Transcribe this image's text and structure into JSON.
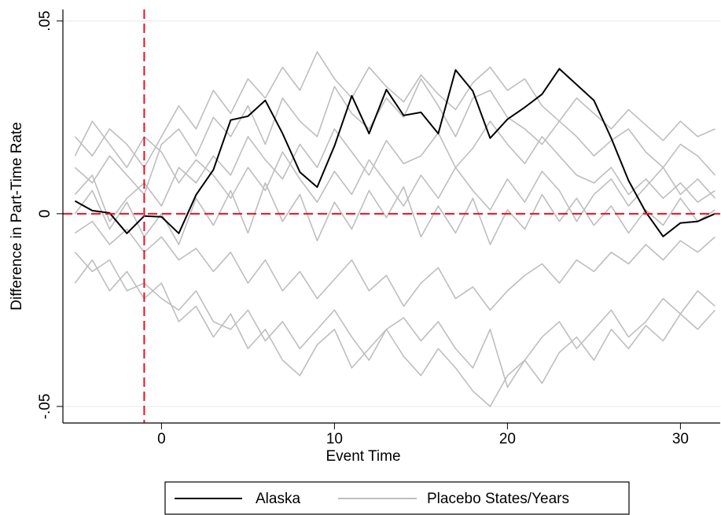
{
  "chart_data": {
    "type": "line",
    "xlabel": "Event Time",
    "ylabel": "Difference in Part-Time Rate",
    "x": [
      -5,
      -4,
      -3,
      -2,
      -1,
      0,
      1,
      2,
      3,
      4,
      5,
      6,
      7,
      8,
      9,
      10,
      11,
      12,
      13,
      14,
      15,
      16,
      17,
      18,
      19,
      20,
      21,
      22,
      23,
      24,
      25,
      26,
      27,
      28,
      29,
      30,
      31,
      32
    ],
    "series": [
      {
        "name": "Alaska",
        "color": "#000000",
        "values": [
          0.0033,
          0.0008,
          0.0002,
          -0.0051,
          -0.0006,
          -0.0008,
          -0.0051,
          0.0049,
          0.0114,
          0.0243,
          0.0253,
          0.0294,
          0.0208,
          0.0108,
          0.0069,
          0.0176,
          0.0306,
          0.0208,
          0.0322,
          0.0255,
          0.0263,
          0.0208,
          0.0373,
          0.0318,
          0.0196,
          0.0245,
          0.0276,
          0.031,
          0.0376,
          0.0335,
          0.0294,
          0.0196,
          0.0086,
          0.0004,
          -0.0059,
          -0.0024,
          -0.002,
          0
        ]
      },
      {
        "name": "Placebo States/Years",
        "color": "#bebebe",
        "values": [
          [
            0.012,
            0.008,
            0.015,
            0.01,
            0.005,
            0.018,
            0.022,
            0.015,
            0.025,
            0.02,
            0.028,
            0.018,
            0.03,
            0.024,
            0.02,
            0.033,
            0.026,
            0.022,
            0.03,
            0.025,
            0.035,
            0.028,
            0.02,
            0.03,
            0.032,
            0.025,
            0.022,
            0.018,
            0.024,
            0.02,
            0.015,
            0.019,
            0.022,
            0.016,
            0.012,
            0.018,
            0.015,
            0.01
          ],
          [
            -0.01,
            -0.015,
            -0.012,
            -0.02,
            -0.018,
            -0.022,
            -0.025,
            -0.02,
            -0.028,
            -0.03,
            -0.025,
            -0.033,
            -0.028,
            -0.035,
            -0.03,
            -0.025,
            -0.032,
            -0.038,
            -0.03,
            -0.027,
            -0.033,
            -0.028,
            -0.035,
            -0.04,
            -0.03,
            -0.045,
            -0.038,
            -0.032,
            -0.028,
            -0.035,
            -0.03,
            -0.025,
            -0.032,
            -0.028,
            -0.022,
            -0.026,
            -0.02,
            -0.024
          ],
          [
            0.005,
            0.01,
            -0.002,
            0.004,
            0.008,
            0.002,
            0.012,
            0.008,
            0.015,
            0.01,
            0.02,
            0.014,
            0.009,
            0.018,
            0.012,
            0.022,
            0.016,
            0.01,
            0.019,
            0.013,
            0.015,
            0.021,
            0.012,
            0.017,
            0.024,
            0.018,
            0.013,
            0.02,
            0.015,
            0.01,
            0.008,
            0.012,
            0.005,
            0.009,
            0.004,
            0.008,
            0.003,
            0.006
          ],
          [
            -0.005,
            -0.002,
            -0.008,
            -0.004,
            -0.01,
            -0.006,
            -0.012,
            -0.009,
            -0.015,
            -0.01,
            -0.018,
            -0.012,
            -0.02,
            -0.015,
            -0.022,
            -0.017,
            -0.012,
            -0.02,
            -0.016,
            -0.024,
            -0.018,
            -0.014,
            -0.022,
            -0.019,
            -0.025,
            -0.02,
            -0.016,
            -0.013,
            -0.018,
            -0.012,
            -0.015,
            -0.01,
            -0.013,
            -0.008,
            -0.012,
            -0.007,
            -0.01,
            -0.006
          ],
          [
            0.02,
            0.015,
            0.022,
            0.018,
            0.012,
            0.02,
            0.028,
            0.022,
            0.032,
            0.026,
            0.035,
            0.03,
            0.038,
            0.032,
            0.042,
            0.035,
            0.03,
            0.038,
            0.033,
            0.029,
            0.036,
            0.031,
            0.027,
            0.034,
            0.038,
            0.032,
            0.035,
            0.028,
            0.024,
            0.03,
            0.026,
            0.022,
            0.027,
            0.023,
            0.019,
            0.024,
            0.02,
            0.022
          ],
          [
            -0.018,
            -0.012,
            -0.02,
            -0.015,
            -0.022,
            -0.018,
            -0.028,
            -0.024,
            -0.032,
            -0.026,
            -0.035,
            -0.03,
            -0.038,
            -0.042,
            -0.034,
            -0.03,
            -0.04,
            -0.035,
            -0.03,
            -0.037,
            -0.042,
            -0.035,
            -0.04,
            -0.046,
            -0.05,
            -0.042,
            -0.038,
            -0.044,
            -0.036,
            -0.032,
            -0.038,
            -0.03,
            -0.035,
            -0.029,
            -0.033,
            -0.026,
            -0.03,
            -0.025
          ],
          [
            0,
            0.006,
            -0.004,
            0.003,
            -0.006,
            0,
            -0.008,
            0.004,
            -0.003,
            0.006,
            -0.005,
            0.008,
            -0.002,
            0.005,
            -0.007,
            0.003,
            -0.004,
            0.006,
            -0.001,
            0.007,
            -0.006,
            0.002,
            -0.005,
            0.004,
            -0.008,
            0.001,
            -0.004,
            0.005,
            -0.002,
            0.004,
            -0.003,
            0.002,
            -0.005,
            0.001,
            -0.003,
            0.004,
            -0.002,
            0.001
          ],
          [
            0.015,
            0.024,
            0.018,
            0.012,
            0.02,
            0.016,
            0.008,
            0.014,
            0.01,
            0.004,
            0.012,
            0.006,
            0.016,
            0.009,
            0.003,
            0.011,
            0.005,
            0.014,
            0.008,
            0.002,
            0.01,
            0.004,
            0.012,
            0.006,
            0.001,
            0.009,
            0.003,
            0.011,
            0.006,
            -0.002,
            0.005,
            0.009,
            0.002,
            0.007,
            0.012,
            0.005,
            0.009,
            0.004
          ]
        ]
      }
    ],
    "reference_lines": {
      "x": -1,
      "y": 0,
      "color": "#e8111e"
    },
    "xlim": [
      -5.7,
      32.3
    ],
    "ylim": [
      -0.0543,
      0.053
    ],
    "xticks": [
      0,
      10,
      20,
      30
    ],
    "yticks": [
      {
        "value": -0.05,
        "label": "-.05"
      },
      0,
      {
        "value": 0.05,
        "label": ".05"
      }
    ],
    "grid": true,
    "legend": "bottom"
  }
}
